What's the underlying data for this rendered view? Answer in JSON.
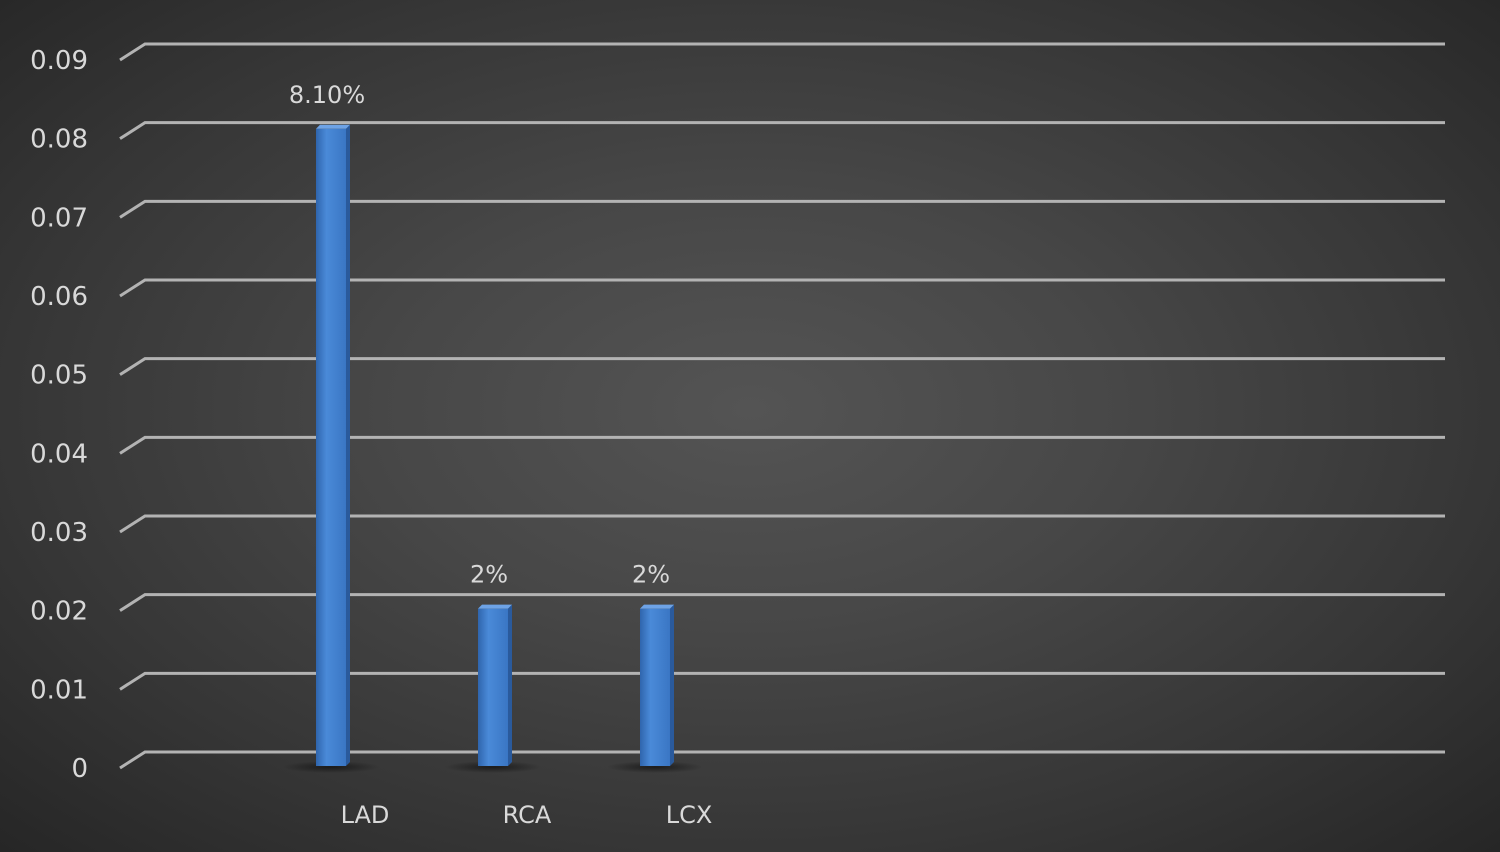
{
  "chart_data": {
    "type": "bar",
    "title": "",
    "xlabel": "",
    "ylabel": "",
    "categories": [
      "LAD",
      "RCA",
      "LCX"
    ],
    "values": [
      0.081,
      0.02,
      0.02
    ],
    "data_labels": [
      "8.10%",
      "2%",
      "2%"
    ],
    "ylim": [
      0,
      0.09
    ],
    "yticks": [
      "0",
      "0.01",
      "0.02",
      "0.03",
      "0.04",
      "0.05",
      "0.06",
      "0.07",
      "0.08",
      "0.09"
    ],
    "grid": true,
    "legend": "none",
    "bar_color": "#3f7fd0",
    "background_color": "#3c3c3c",
    "style": "3d-column"
  }
}
